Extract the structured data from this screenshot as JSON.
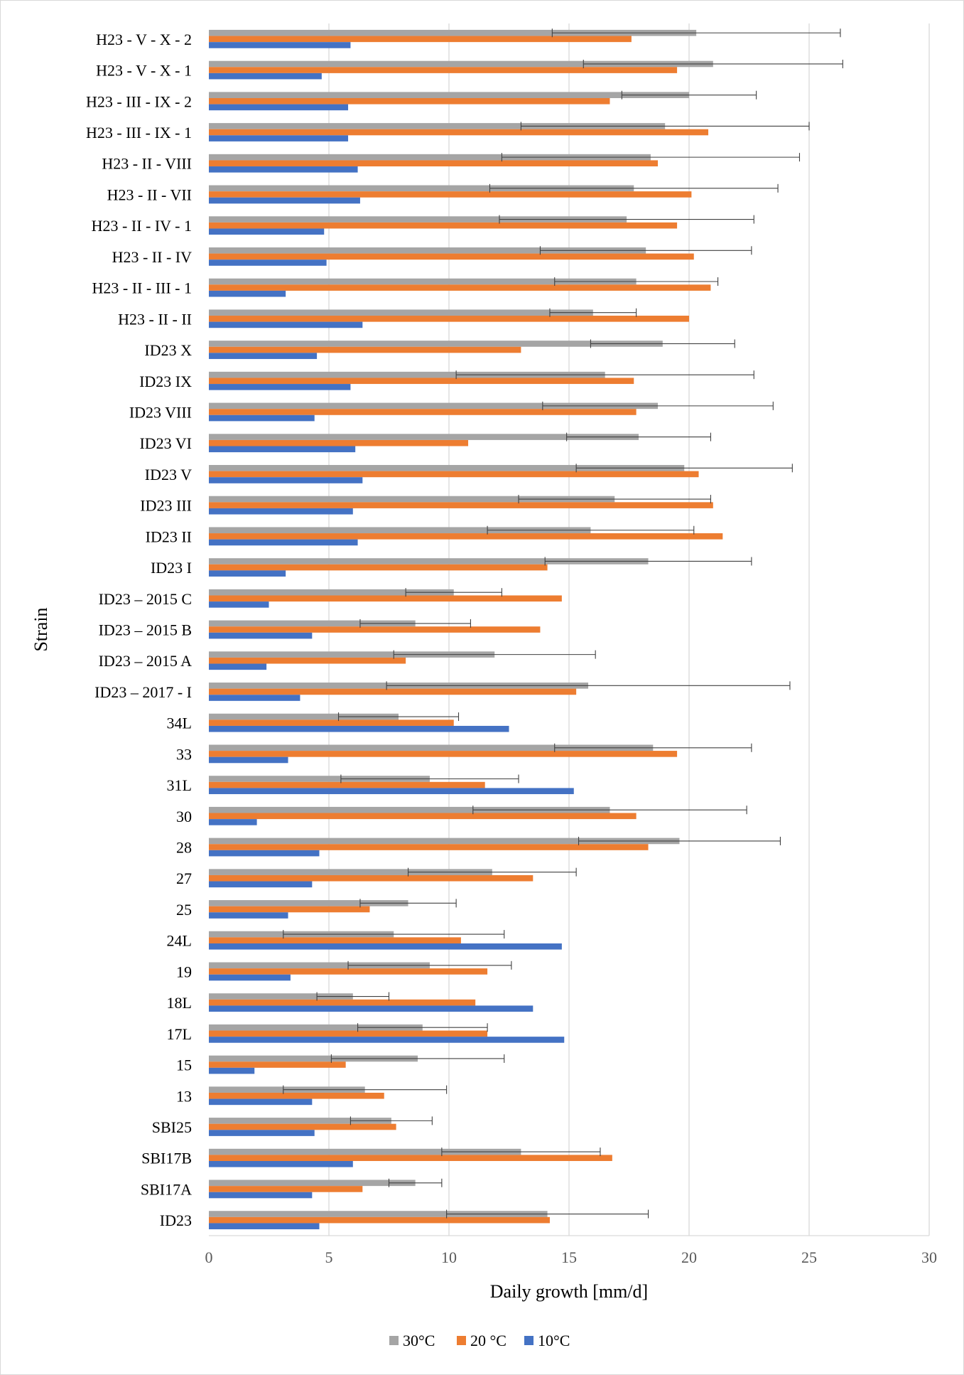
{
  "chart_data": {
    "type": "bar",
    "orientation": "horizontal",
    "xlabel": "Daily growth [mm/d]",
    "ylabel": "Strain",
    "xlim": [
      0,
      30
    ],
    "xticks": [
      "0",
      "5",
      "10",
      "15",
      "20",
      "25",
      "30"
    ],
    "grid": "vertical",
    "legend_position": "bottom",
    "categories": [
      "H23 - V - X - 2",
      "H23 - V - X - 1",
      "H23 - III - IX - 2",
      "H23 - III - IX - 1",
      "H23 - II - VIII",
      "H23 - II - VII",
      "H23 - II - IV - 1",
      "H23 - II - IV",
      "H23 - II - III - 1",
      "H23 - II - II",
      "ID23 X",
      "ID23 IX",
      "ID23 VIII",
      "ID23 VI",
      "ID23 V",
      "ID23 III",
      "ID23 II",
      "ID23 I",
      "ID23 – 2015 C",
      "ID23 – 2015 B",
      "ID23 – 2015 A",
      "ID23 – 2017 - I",
      "34L",
      "33",
      "31L",
      "30",
      "28",
      "27",
      "25",
      "24L",
      "19",
      "18L",
      "17L",
      "15",
      "13",
      "SBI25",
      "SBI17B",
      "SBI17A",
      "ID23"
    ],
    "series": [
      {
        "name": "30°C",
        "color": "#a5a5a5",
        "values": [
          20.3,
          21.0,
          20.0,
          19.0,
          18.4,
          17.7,
          17.4,
          18.2,
          17.8,
          16.0,
          18.9,
          16.5,
          18.7,
          17.9,
          19.8,
          16.9,
          15.9,
          18.3,
          10.2,
          8.6,
          11.9,
          15.8,
          7.9,
          18.5,
          9.2,
          16.7,
          19.6,
          11.8,
          8.3,
          7.7,
          9.2,
          6.0,
          8.9,
          8.7,
          6.5,
          7.6,
          13.0,
          8.6,
          14.1
        ],
        "errors": [
          6.0,
          5.4,
          2.8,
          6.0,
          6.2,
          6.0,
          5.3,
          4.4,
          3.4,
          1.8,
          3.0,
          6.2,
          4.8,
          3.0,
          4.5,
          4.0,
          4.3,
          4.3,
          2.0,
          2.3,
          4.2,
          8.4,
          2.5,
          4.1,
          3.7,
          5.7,
          4.2,
          3.5,
          2.0,
          4.6,
          3.4,
          1.5,
          2.7,
          3.6,
          3.4,
          1.7,
          3.3,
          1.1,
          4.2
        ]
      },
      {
        "name": "20 °C",
        "color": "#ed7d31",
        "values": [
          17.6,
          19.5,
          16.7,
          20.8,
          18.7,
          20.1,
          19.5,
          20.2,
          20.9,
          20.0,
          13.0,
          17.7,
          17.8,
          10.8,
          20.4,
          21.0,
          21.4,
          14.1,
          14.7,
          13.8,
          8.2,
          15.3,
          10.2,
          19.5,
          11.5,
          17.8,
          18.3,
          13.5,
          6.7,
          10.5,
          11.6,
          11.1,
          11.6,
          5.7,
          7.3,
          7.8,
          16.8,
          6.4,
          14.2
        ]
      },
      {
        "name": "10°C",
        "color": "#4472c4",
        "values": [
          5.9,
          4.7,
          5.8,
          5.8,
          6.2,
          6.3,
          4.8,
          4.9,
          3.2,
          6.4,
          4.5,
          5.9,
          4.4,
          6.1,
          6.4,
          6.0,
          6.2,
          3.2,
          2.5,
          4.3,
          2.4,
          3.8,
          12.5,
          3.3,
          15.2,
          2.0,
          4.6,
          4.3,
          3.3,
          14.7,
          3.4,
          13.5,
          14.8,
          1.9,
          4.3,
          4.4,
          6.0,
          4.3,
          4.6
        ]
      }
    ]
  }
}
